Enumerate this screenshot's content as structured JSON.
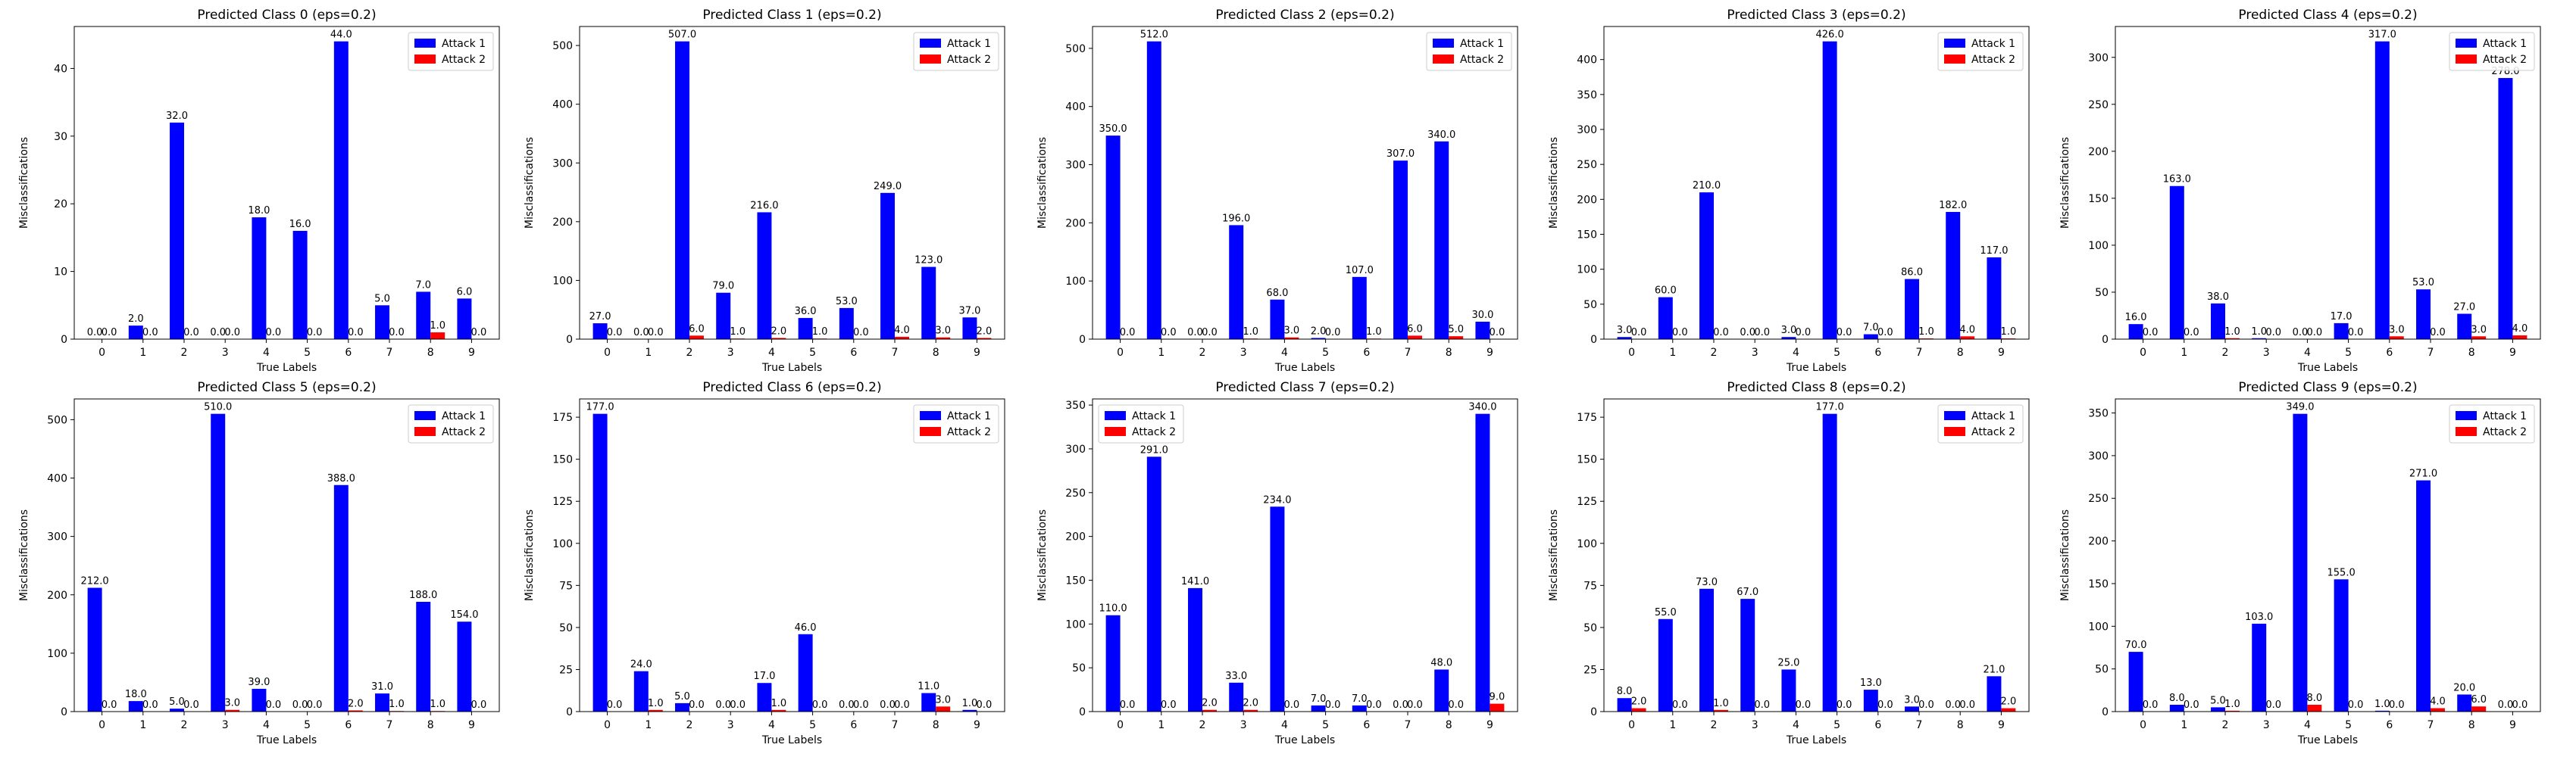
{
  "chart_data": [
    {
      "type": "bar",
      "title": "Predicted Class 0 (eps=0.2)",
      "xlabel": "True Labels",
      "ylabel": "Misclassifications",
      "categories": [
        "0",
        "1",
        "2",
        "3",
        "4",
        "5",
        "6",
        "7",
        "8",
        "9"
      ],
      "yticks": [
        0,
        10,
        20,
        30,
        40
      ],
      "ylim": [
        0,
        46.2
      ],
      "legend": "top-right",
      "series": [
        {
          "name": "Attack 1",
          "color": "#0000ff",
          "values": [
            0,
            2,
            32,
            0,
            18,
            16,
            44,
            5,
            7,
            6
          ]
        },
        {
          "name": "Attack 2",
          "color": "#ff0000",
          "values": [
            0,
            0,
            0,
            0,
            0,
            0,
            0,
            0,
            1,
            0
          ]
        }
      ]
    },
    {
      "type": "bar",
      "title": "Predicted Class 1 (eps=0.2)",
      "xlabel": "True Labels",
      "ylabel": "Misclassifications",
      "categories": [
        "0",
        "1",
        "2",
        "3",
        "4",
        "5",
        "6",
        "7",
        "8",
        "9"
      ],
      "yticks": [
        0,
        100,
        200,
        300,
        400,
        500
      ],
      "ylim": [
        0,
        532.35
      ],
      "legend": "top-right",
      "series": [
        {
          "name": "Attack 1",
          "color": "#0000ff",
          "values": [
            27,
            0,
            507,
            79,
            216,
            36,
            53,
            249,
            123,
            37
          ]
        },
        {
          "name": "Attack 2",
          "color": "#ff0000",
          "values": [
            0,
            0,
            6,
            1,
            2,
            1,
            0,
            4,
            3,
            2
          ]
        }
      ]
    },
    {
      "type": "bar",
      "title": "Predicted Class 2 (eps=0.2)",
      "xlabel": "True Labels",
      "ylabel": "Misclassifications",
      "categories": [
        "0",
        "1",
        "2",
        "3",
        "4",
        "5",
        "6",
        "7",
        "8",
        "9"
      ],
      "yticks": [
        0,
        100,
        200,
        300,
        400,
        500
      ],
      "ylim": [
        0,
        537.6
      ],
      "legend": "top-right",
      "series": [
        {
          "name": "Attack 1",
          "color": "#0000ff",
          "values": [
            350,
            512,
            0,
            196,
            68,
            2,
            107,
            307,
            340,
            30
          ]
        },
        {
          "name": "Attack 2",
          "color": "#ff0000",
          "values": [
            0,
            0,
            0,
            1,
            3,
            0,
            1,
            6,
            5,
            0
          ]
        }
      ]
    },
    {
      "type": "bar",
      "title": "Predicted Class 3 (eps=0.2)",
      "xlabel": "True Labels",
      "ylabel": "Misclassifications",
      "categories": [
        "0",
        "1",
        "2",
        "3",
        "4",
        "5",
        "6",
        "7",
        "8",
        "9"
      ],
      "yticks": [
        0,
        50,
        100,
        150,
        200,
        250,
        300,
        350,
        400
      ],
      "ylim": [
        0,
        447.3
      ],
      "legend": "top-right",
      "series": [
        {
          "name": "Attack 1",
          "color": "#0000ff",
          "values": [
            3,
            60,
            210,
            0,
            3,
            426,
            7,
            86,
            182,
            117
          ]
        },
        {
          "name": "Attack 2",
          "color": "#ff0000",
          "values": [
            0,
            0,
            0,
            0,
            0,
            0,
            0,
            1,
            4,
            1
          ]
        }
      ]
    },
    {
      "type": "bar",
      "title": "Predicted Class 4 (eps=0.2)",
      "xlabel": "True Labels",
      "ylabel": "Misclassifications",
      "categories": [
        "0",
        "1",
        "2",
        "3",
        "4",
        "5",
        "6",
        "7",
        "8",
        "9"
      ],
      "yticks": [
        0,
        50,
        100,
        150,
        200,
        250,
        300
      ],
      "ylim": [
        0,
        332.85
      ],
      "legend": "top-right",
      "series": [
        {
          "name": "Attack 1",
          "color": "#0000ff",
          "values": [
            16,
            163,
            38,
            1,
            0,
            17,
            317,
            53,
            27,
            278
          ]
        },
        {
          "name": "Attack 2",
          "color": "#ff0000",
          "values": [
            0,
            0,
            1,
            0,
            0,
            0,
            3,
            0,
            3,
            4
          ]
        }
      ]
    },
    {
      "type": "bar",
      "title": "Predicted Class 5 (eps=0.2)",
      "xlabel": "True Labels",
      "ylabel": "Misclassifications",
      "categories": [
        "0",
        "1",
        "2",
        "3",
        "4",
        "5",
        "6",
        "7",
        "8",
        "9"
      ],
      "yticks": [
        0,
        100,
        200,
        300,
        400,
        500
      ],
      "ylim": [
        0,
        535.5
      ],
      "legend": "top-right",
      "series": [
        {
          "name": "Attack 1",
          "color": "#0000ff",
          "values": [
            212,
            18,
            5,
            510,
            39,
            0,
            388,
            31,
            188,
            154
          ]
        },
        {
          "name": "Attack 2",
          "color": "#ff0000",
          "values": [
            0,
            0,
            0,
            3,
            0,
            0,
            2,
            1,
            1,
            0
          ]
        }
      ]
    },
    {
      "type": "bar",
      "title": "Predicted Class 6 (eps=0.2)",
      "xlabel": "True Labels",
      "ylabel": "Misclassifications",
      "categories": [
        "0",
        "1",
        "2",
        "3",
        "4",
        "5",
        "6",
        "7",
        "8",
        "9"
      ],
      "yticks": [
        0,
        25,
        50,
        75,
        100,
        125,
        150,
        175
      ],
      "ylim": [
        0,
        185.85
      ],
      "legend": "top-right",
      "series": [
        {
          "name": "Attack 1",
          "color": "#0000ff",
          "values": [
            177,
            24,
            5,
            0,
            17,
            46,
            0,
            0,
            11,
            1
          ]
        },
        {
          "name": "Attack 2",
          "color": "#ff0000",
          "values": [
            0,
            1,
            0,
            0,
            1,
            0,
            0,
            0,
            3,
            0
          ]
        }
      ]
    },
    {
      "type": "bar",
      "title": "Predicted Class 7 (eps=0.2)",
      "xlabel": "True Labels",
      "ylabel": "Misclassifications",
      "categories": [
        "0",
        "1",
        "2",
        "3",
        "4",
        "5",
        "6",
        "7",
        "8",
        "9"
      ],
      "yticks": [
        0,
        50,
        100,
        150,
        200,
        250,
        300,
        350
      ],
      "ylim": [
        0,
        357
      ],
      "legend": "top-left",
      "series": [
        {
          "name": "Attack 1",
          "color": "#0000ff",
          "values": [
            110,
            291,
            141,
            33,
            234,
            7,
            7,
            0,
            48,
            340
          ]
        },
        {
          "name": "Attack 2",
          "color": "#ff0000",
          "values": [
            0,
            0,
            2,
            2,
            0,
            0,
            0,
            0,
            0,
            9
          ]
        }
      ]
    },
    {
      "type": "bar",
      "title": "Predicted Class 8 (eps=0.2)",
      "xlabel": "True Labels",
      "ylabel": "Misclassifications",
      "categories": [
        "0",
        "1",
        "2",
        "3",
        "4",
        "5",
        "6",
        "7",
        "8",
        "9"
      ],
      "yticks": [
        0,
        25,
        50,
        75,
        100,
        125,
        150,
        175
      ],
      "ylim": [
        0,
        185.85
      ],
      "legend": "top-right",
      "series": [
        {
          "name": "Attack 1",
          "color": "#0000ff",
          "values": [
            8,
            55,
            73,
            67,
            25,
            177,
            13,
            3,
            0,
            21
          ]
        },
        {
          "name": "Attack 2",
          "color": "#ff0000",
          "values": [
            2,
            0,
            1,
            0,
            0,
            0,
            0,
            0,
            0,
            2
          ]
        }
      ]
    },
    {
      "type": "bar",
      "title": "Predicted Class 9 (eps=0.2)",
      "xlabel": "True Labels",
      "ylabel": "Misclassifications",
      "categories": [
        "0",
        "1",
        "2",
        "3",
        "4",
        "5",
        "6",
        "7",
        "8",
        "9"
      ],
      "yticks": [
        0,
        50,
        100,
        150,
        200,
        250,
        300,
        350
      ],
      "ylim": [
        0,
        366.45
      ],
      "legend": "top-right",
      "series": [
        {
          "name": "Attack 1",
          "color": "#0000ff",
          "values": [
            70,
            8,
            5,
            103,
            349,
            155,
            1,
            271,
            20,
            0
          ]
        },
        {
          "name": "Attack 2",
          "color": "#ff0000",
          "values": [
            0,
            0,
            1,
            0,
            8,
            0,
            0,
            4,
            6,
            0
          ]
        }
      ]
    }
  ]
}
